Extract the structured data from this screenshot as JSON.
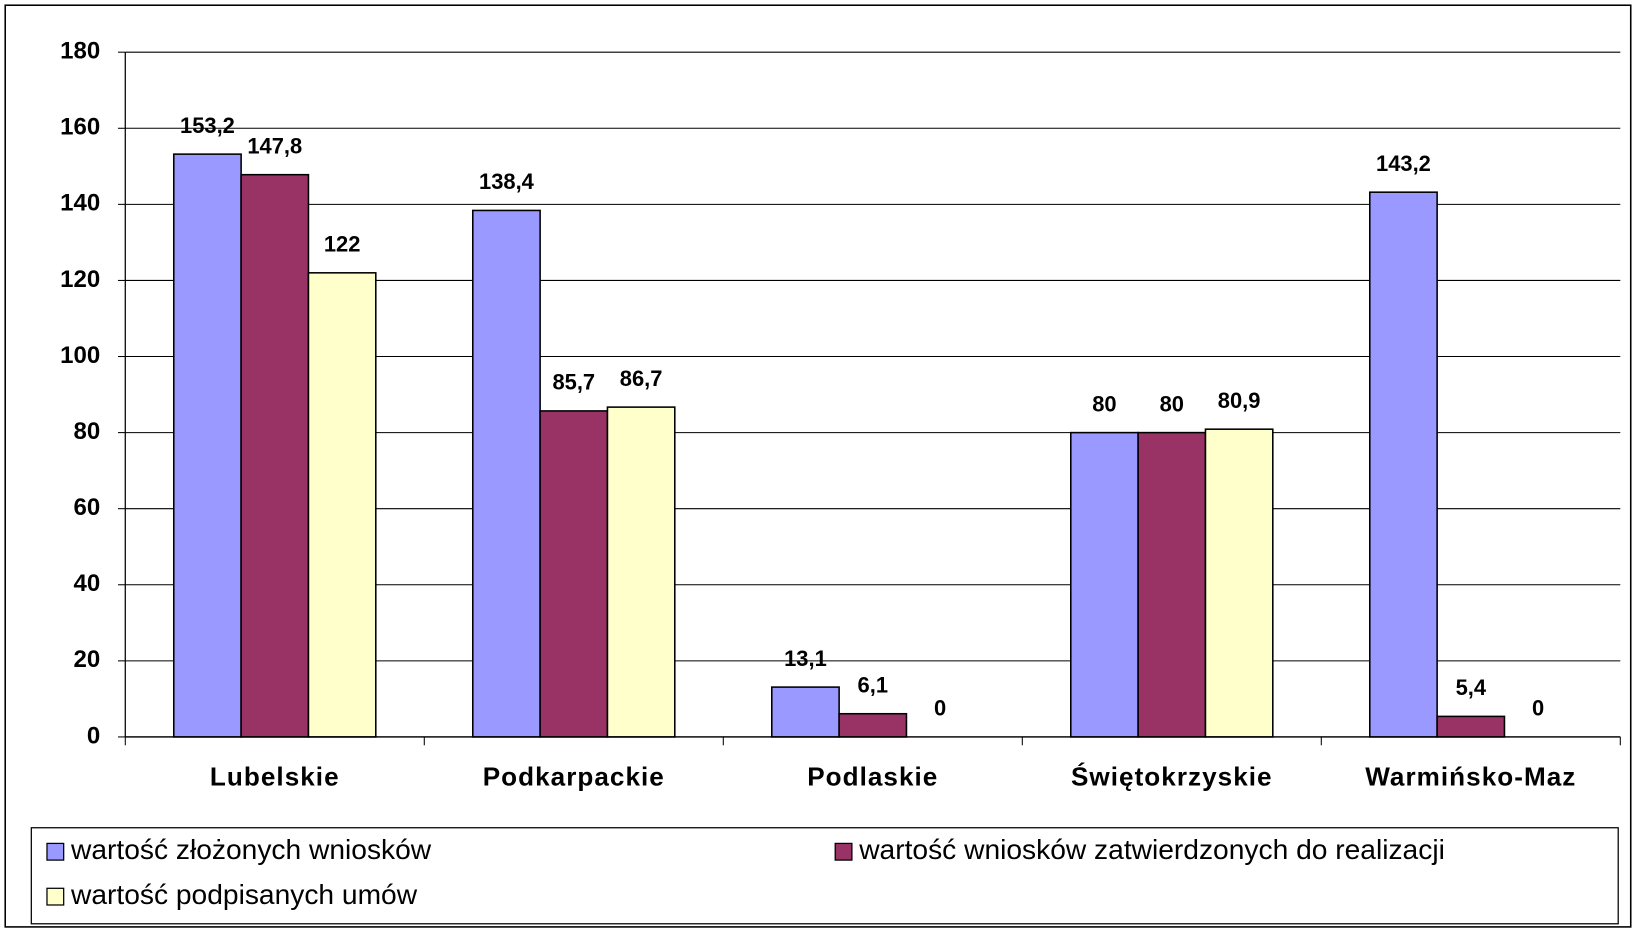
{
  "chart_data": {
    "type": "bar",
    "categories": [
      "Lubelskie",
      "Podkarpackie",
      "Podlaskie",
      "Świętokrzyskie",
      "Warmińsko-Maz"
    ],
    "series": [
      {
        "name": "wartość złożonych wniosków",
        "color": "#9999ff",
        "values": [
          153.2,
          138.4,
          13.1,
          80,
          143.2
        ],
        "value_labels": [
          "153,2",
          "138,4",
          "13,1",
          "80",
          "143,2"
        ]
      },
      {
        "name": "wartość wniosków zatwierdzonych do realizacji",
        "color": "#993366",
        "values": [
          147.8,
          85.7,
          6.1,
          80,
          5.4
        ],
        "value_labels": [
          "147,8",
          "85,7",
          "6,1",
          "80",
          "5,4"
        ]
      },
      {
        "name": "wartość podpisanych umów",
        "color": "#ffffcc",
        "values": [
          122,
          86.7,
          0,
          80.9,
          0
        ],
        "value_labels": [
          "122",
          "86,7",
          "0",
          "80,9",
          "0"
        ]
      }
    ],
    "ylim": [
      0,
      180
    ],
    "yticks": [
      0,
      20,
      40,
      60,
      80,
      100,
      120,
      140,
      160,
      180
    ],
    "grid": true,
    "legend": "bottom"
  }
}
